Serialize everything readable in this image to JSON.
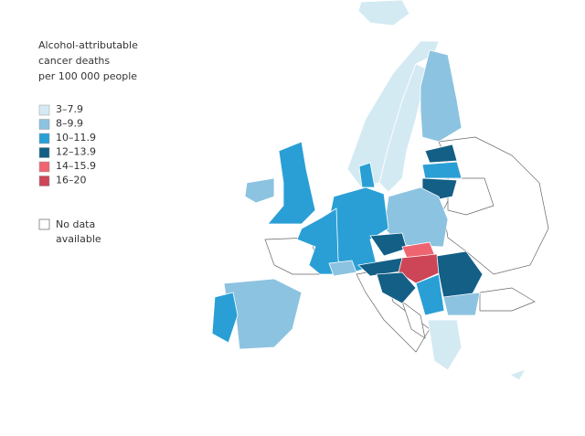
{
  "legend": {
    "title": [
      "Alcohol-attributable",
      "cancer deaths",
      "per 100 000 people"
    ],
    "items": [
      {
        "label": "3–7.9",
        "color": "#d4eaf3"
      },
      {
        "label": "8–9.9",
        "color": "#8cc3e0"
      },
      {
        "label": "10–11.9",
        "color": "#2a9fd6"
      },
      {
        "label": "12–13.9",
        "color": "#135f86"
      },
      {
        "label": "14–15.9",
        "color": "#ef6471"
      },
      {
        "label": "16–20",
        "color": "#cc4657"
      }
    ],
    "no_data": [
      "No data",
      "available"
    ]
  }
}
